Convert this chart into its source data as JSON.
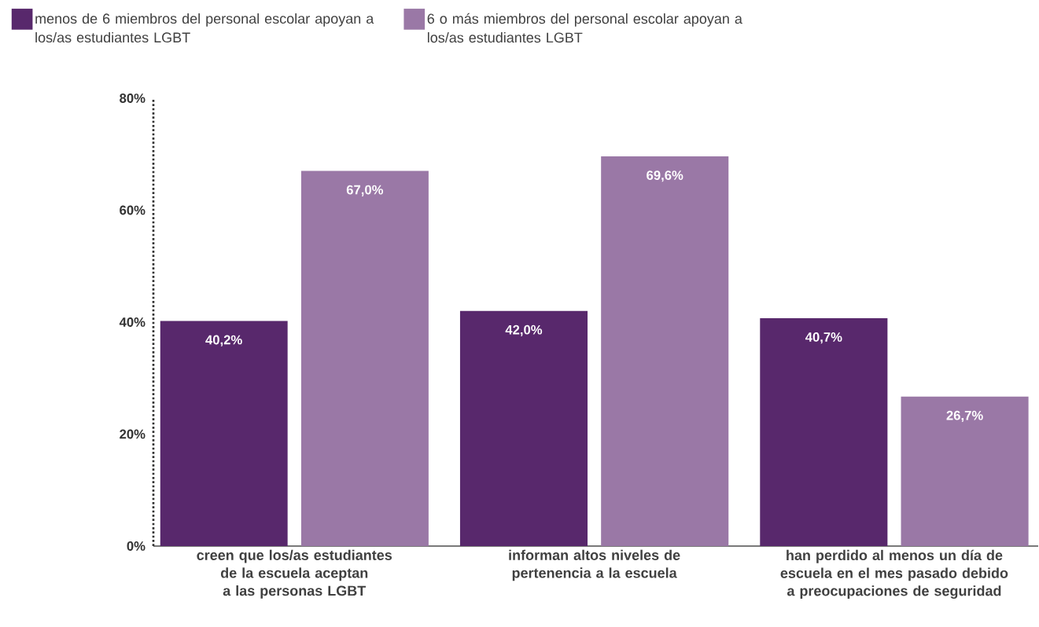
{
  "chart_data": {
    "type": "bar",
    "categories": [
      "creen que los/as estudiantes de la escuela aceptan a las personas LGBT",
      "informan altos niveles de pertenencia a la escuela",
      "han perdido al menos un día de escuela en el mes pasado debido a preocupaciones de seguridad"
    ],
    "series": [
      {
        "name": "menos de 6 miembros del personal escolar apoyan a los/as estudiantes LGBT",
        "color": "#58286c",
        "values": [
          40.2,
          42.0,
          40.7
        ],
        "value_labels": [
          "40,2%",
          "42,0%",
          "40,7%"
        ]
      },
      {
        "name": "6 o más miembros del personal escolar apoyan a los/as estudiantes LGBT",
        "color": "#9a78a6",
        "values": [
          67.0,
          69.6,
          26.7
        ],
        "value_labels": [
          "67,0%",
          "69,6%",
          "26,7%"
        ]
      }
    ],
    "ylim": [
      0,
      80
    ],
    "yticks": [
      {
        "value": 0,
        "label": "0%"
      },
      {
        "value": 20,
        "label": "20%"
      },
      {
        "value": 40,
        "label": "40%"
      },
      {
        "value": 60,
        "label": "60%"
      },
      {
        "value": 80,
        "label": "80%"
      }
    ],
    "legend": "top left"
  }
}
